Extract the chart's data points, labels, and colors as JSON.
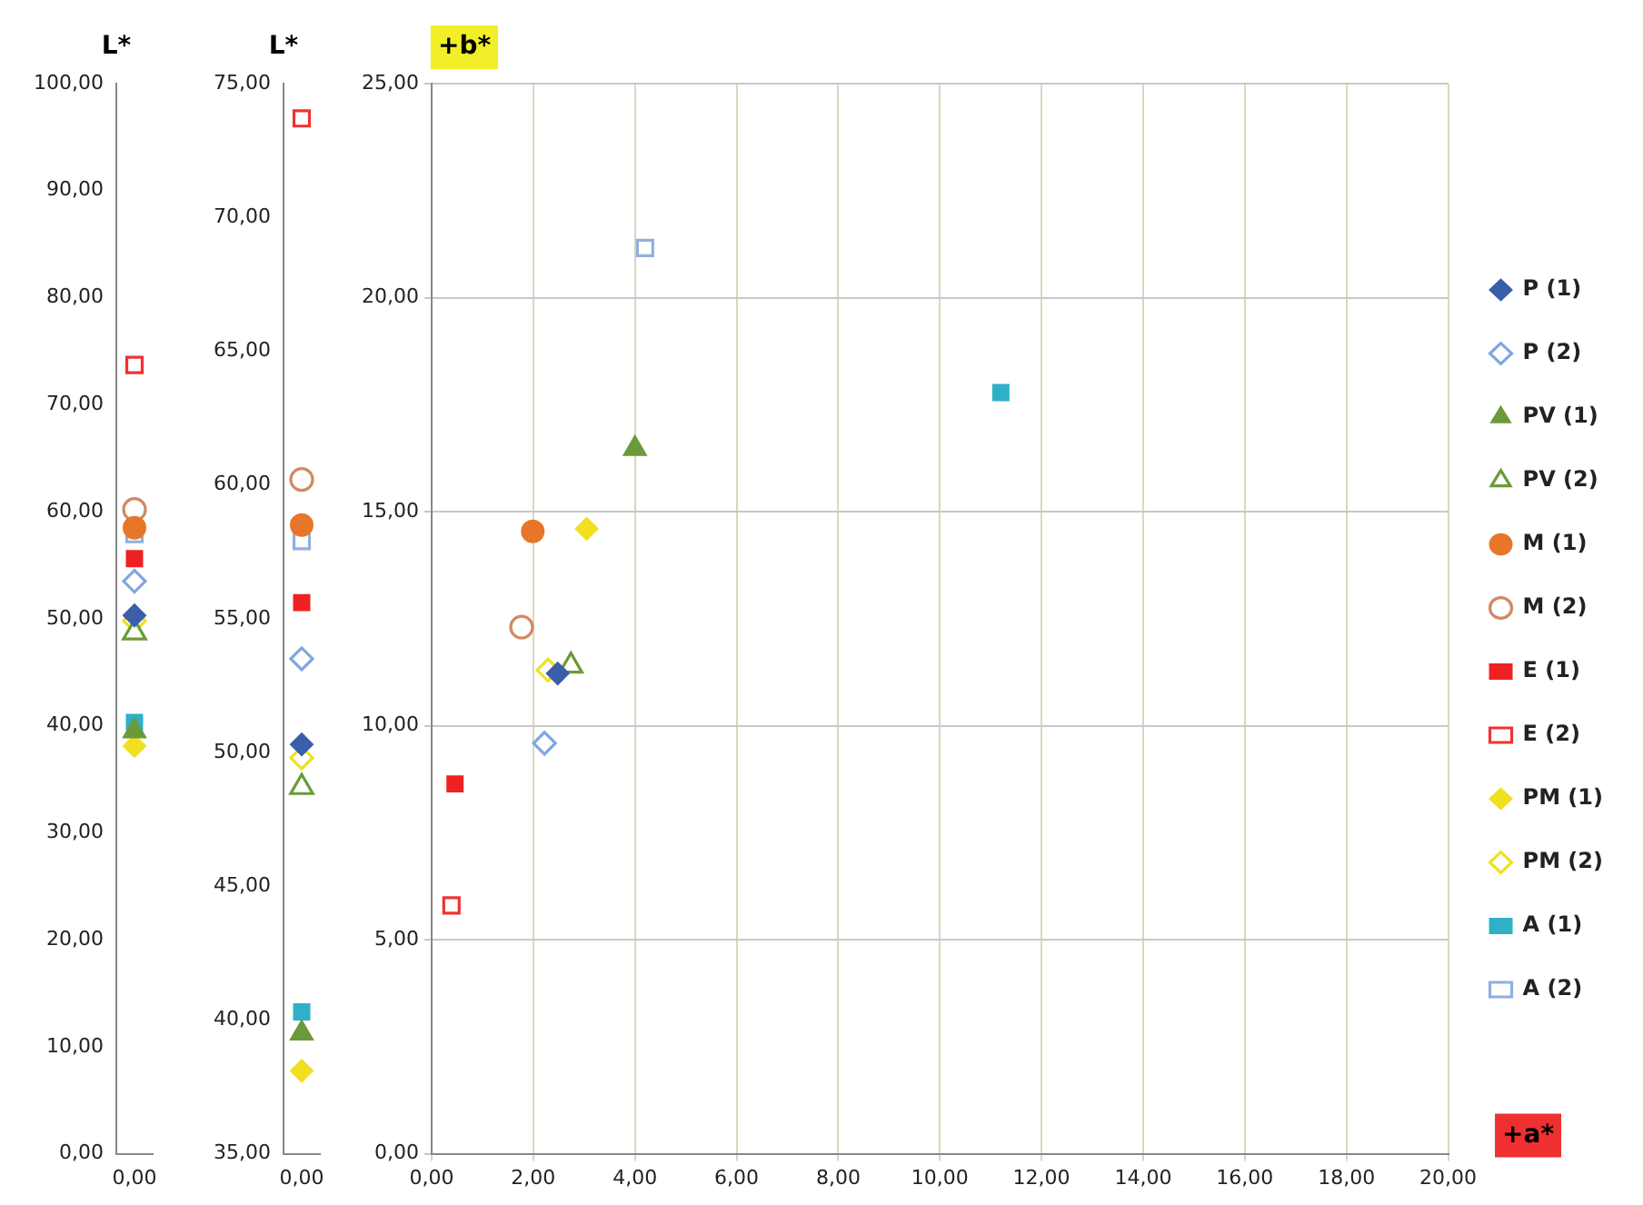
{
  "chart_data": [
    {
      "type": "scatter",
      "title": "L*",
      "categories": [
        "0,00"
      ],
      "ylim": [
        0,
        100
      ],
      "yticks": [
        {
          "value": 0,
          "label": "0,00"
        },
        {
          "value": 10,
          "label": "10,00"
        },
        {
          "value": 20,
          "label": "20,00"
        },
        {
          "value": 30,
          "label": "30,00"
        },
        {
          "value": 40,
          "label": "40,00"
        },
        {
          "value": 50,
          "label": "50,00"
        },
        {
          "value": 60,
          "label": "60,00"
        },
        {
          "value": 70,
          "label": "70,00"
        },
        {
          "value": 80,
          "label": "80,00"
        },
        {
          "value": 90,
          "label": "90,00"
        },
        {
          "value": 100,
          "label": "100,00"
        }
      ],
      "grid": false,
      "legend": false,
      "series": [
        {
          "color": "#3a5fa8",
          "marker": "diamond",
          "x": [
            "0,00"
          ],
          "values": [
            50.3
          ]
        },
        {
          "color": "#7fa7e0",
          "marker": "diamond",
          "x": [
            "0,00"
          ],
          "values": [
            53.5
          ]
        },
        {
          "color": "#6b9a3a",
          "marker": "triangle",
          "x": [
            "0,00"
          ],
          "values": [
            39.5
          ]
        },
        {
          "color": "#6b9a3a",
          "marker": "triangle",
          "x": [
            "0,00"
          ],
          "values": [
            48.7
          ]
        },
        {
          "color": "#e8762a",
          "marker": "circle",
          "x": [
            "0,00"
          ],
          "values": [
            58.5
          ]
        },
        {
          "color": "#d08a60",
          "marker": "circle",
          "x": [
            "0,00"
          ],
          "values": [
            60.2
          ]
        },
        {
          "color": "#ee2222",
          "marker": "square",
          "x": [
            "0,00"
          ],
          "values": [
            55.6
          ]
        },
        {
          "color": "#ee3333",
          "marker": "square",
          "x": [
            "0,00"
          ],
          "values": [
            73.7
          ]
        },
        {
          "color": "#f0e020",
          "marker": "diamond",
          "x": [
            "0,00"
          ],
          "values": [
            38.1
          ]
        },
        {
          "color": "#f0e020",
          "marker": "diamond",
          "x": [
            "0,00"
          ],
          "values": [
            49.8
          ]
        },
        {
          "color": "#2fb0c8",
          "marker": "square",
          "x": [
            "0,00"
          ],
          "values": [
            40.3
          ]
        },
        {
          "color": "#8fb0e0",
          "marker": "square",
          "x": [
            "0,00"
          ],
          "values": [
            57.9
          ]
        }
      ]
    },
    {
      "type": "scatter",
      "title": "L*",
      "categories": [
        "0,00"
      ],
      "ylim": [
        35,
        75
      ],
      "yticks": [
        {
          "value": 35,
          "label": "35,00"
        },
        {
          "value": 40,
          "label": "40,00"
        },
        {
          "value": 45,
          "label": "45,00"
        },
        {
          "value": 50,
          "label": "50,00"
        },
        {
          "value": 55,
          "label": "55,00"
        },
        {
          "value": 60,
          "label": "60,00"
        },
        {
          "value": 65,
          "label": "65,00"
        },
        {
          "value": 70,
          "label": "70,00"
        },
        {
          "value": 75,
          "label": "75,00"
        }
      ],
      "grid": false,
      "legend": false,
      "series": [
        {
          "color": "#3a5fa8",
          "marker": "diamond",
          "x": [
            "0,00"
          ],
          "values": [
            50.3
          ]
        },
        {
          "color": "#7fa7e0",
          "marker": "diamond",
          "x": [
            "0,00"
          ],
          "values": [
            53.5
          ]
        },
        {
          "color": "#6b9a3a",
          "marker": "triangle",
          "x": [
            "0,00"
          ],
          "values": [
            39.5
          ]
        },
        {
          "color": "#6b9a3a",
          "marker": "triangle",
          "x": [
            "0,00"
          ],
          "values": [
            48.7
          ]
        },
        {
          "color": "#e8762a",
          "marker": "circle",
          "x": [
            "0,00"
          ],
          "values": [
            58.5
          ]
        },
        {
          "color": "#d08a60",
          "marker": "circle",
          "x": [
            "0,00"
          ],
          "values": [
            60.2
          ]
        },
        {
          "color": "#ee2222",
          "marker": "square",
          "x": [
            "0,00"
          ],
          "values": [
            55.6
          ]
        },
        {
          "color": "#ee3333",
          "marker": "square",
          "x": [
            "0,00"
          ],
          "values": [
            73.7
          ]
        },
        {
          "color": "#f0e020",
          "marker": "diamond",
          "x": [
            "0,00"
          ],
          "values": [
            38.1
          ]
        },
        {
          "color": "#f0e020",
          "marker": "diamond",
          "x": [
            "0,00"
          ],
          "values": [
            49.8
          ]
        },
        {
          "color": "#2fb0c8",
          "marker": "square",
          "x": [
            "0,00"
          ],
          "values": [
            40.3
          ]
        },
        {
          "color": "#8fb0e0",
          "marker": "square",
          "x": [
            "0,00"
          ],
          "values": [
            57.9
          ]
        }
      ]
    },
    {
      "type": "scatter",
      "xlabel": "+a*",
      "ylabel": "+b*",
      "xlim": [
        0,
        20
      ],
      "xticks": [
        {
          "value": 0,
          "label": "0,00"
        },
        {
          "value": 2,
          "label": "2,00"
        },
        {
          "value": 4,
          "label": "4,00"
        },
        {
          "value": 6,
          "label": "6,00"
        },
        {
          "value": 8,
          "label": "8,00"
        },
        {
          "value": 10,
          "label": "10,00"
        },
        {
          "value": 12,
          "label": "12,00"
        },
        {
          "value": 14,
          "label": "14,00"
        },
        {
          "value": 16,
          "label": "16,00"
        },
        {
          "value": 18,
          "label": "18,00"
        },
        {
          "value": 20,
          "label": "20,00"
        }
      ],
      "ylim": [
        0,
        25
      ],
      "yticks": [
        {
          "value": 0,
          "label": "0,00"
        },
        {
          "value": 5,
          "label": "5,00"
        },
        {
          "value": 10,
          "label": "10,00"
        },
        {
          "value": 15,
          "label": "15,00"
        },
        {
          "value": 20,
          "label": "20,00"
        },
        {
          "value": 25,
          "label": "25,00"
        }
      ],
      "grid": true,
      "legend": "right",
      "series": [
        {
          "name": "P (1)",
          "color": "#3a5fa8",
          "marker": "diamond",
          "x": [
            2.48
          ],
          "values": [
            11.22
          ]
        },
        {
          "name": "P (2)",
          "color": "#7fa7e0",
          "marker": "diamond",
          "x": [
            2.22
          ],
          "values": [
            9.59
          ]
        },
        {
          "name": "PV (1)",
          "color": "#6b9a3a",
          "marker": "triangle",
          "x": [
            4.0
          ],
          "values": [
            16.47
          ]
        },
        {
          "name": "PV (2)",
          "color": "#6b9a3a",
          "marker": "triangle",
          "x": [
            2.74
          ],
          "values": [
            11.4
          ]
        },
        {
          "name": "M (1)",
          "color": "#e8762a",
          "marker": "circle",
          "x": [
            1.99
          ],
          "values": [
            14.54
          ]
        },
        {
          "name": "M (2)",
          "color": "#d08a60",
          "marker": "circle",
          "x": [
            1.77
          ],
          "values": [
            12.3
          ]
        },
        {
          "name": "E (1)",
          "color": "#ee2222",
          "marker": "square",
          "x": [
            0.46
          ],
          "values": [
            8.64
          ]
        },
        {
          "name": "E (2)",
          "color": "#ee3333",
          "marker": "square",
          "x": [
            0.39
          ],
          "values": [
            5.8
          ]
        },
        {
          "name": "PM (1)",
          "color": "#f0e020",
          "marker": "diamond",
          "x": [
            3.05
          ],
          "values": [
            14.6
          ]
        },
        {
          "name": "PM (2)",
          "color": "#f0e020",
          "marker": "diamond",
          "x": [
            2.29
          ],
          "values": [
            11.3
          ]
        },
        {
          "name": "A (1)",
          "color": "#2fb0c8",
          "marker": "square",
          "x": [
            11.2
          ],
          "values": [
            17.78
          ]
        },
        {
          "name": "A (2)",
          "color": "#8fb0e0",
          "marker": "square",
          "x": [
            4.2
          ],
          "values": [
            21.16
          ]
        }
      ]
    }
  ]
}
